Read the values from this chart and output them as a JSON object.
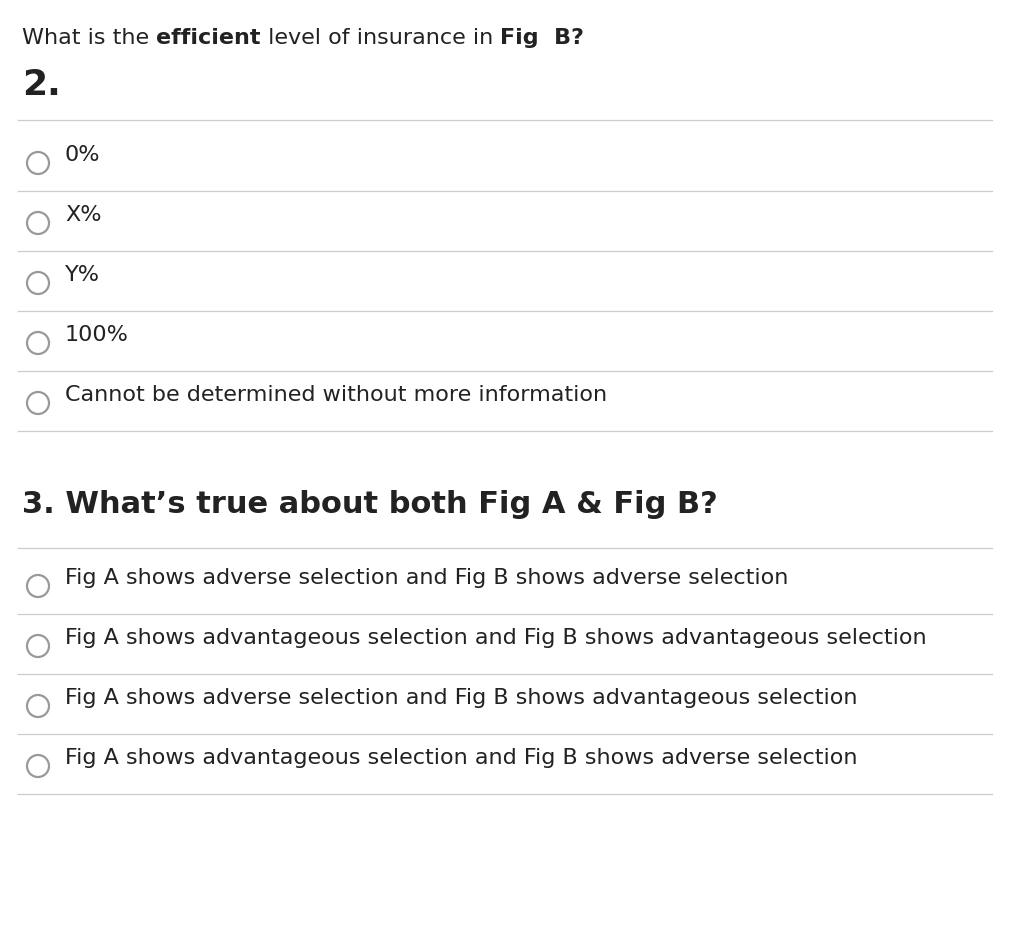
{
  "background_color": "#ffffff",
  "header_segments": [
    {
      "text": "What is the ",
      "bold": false
    },
    {
      "text": "efficient",
      "bold": true
    },
    {
      "text": " level of insurance in ",
      "bold": false
    },
    {
      "text": "Fig  B?",
      "bold": true
    }
  ],
  "question2_label": "2.",
  "question3_label": "3. What’s true about both Fig A & Fig B?",
  "q2_options": [
    "0%",
    "X%",
    "Y%",
    "100%",
    "Cannot be determined without more information"
  ],
  "q3_options": [
    "Fig A shows adverse selection and Fig B shows adverse selection",
    "Fig A shows advantageous selection and Fig B shows advantageous selection",
    "Fig A shows adverse selection and Fig B shows advantageous selection",
    "Fig A shows advantageous selection and Fig B shows adverse selection"
  ],
  "divider_color": "#cccccc",
  "text_color": "#222222",
  "circle_edge_color": "#999999",
  "font_size_header": 16,
  "font_size_q2_label": 26,
  "font_size_q3_label": 22,
  "font_size_options": 16,
  "fig_width": 10.1,
  "fig_height": 9.44,
  "dpi": 100
}
